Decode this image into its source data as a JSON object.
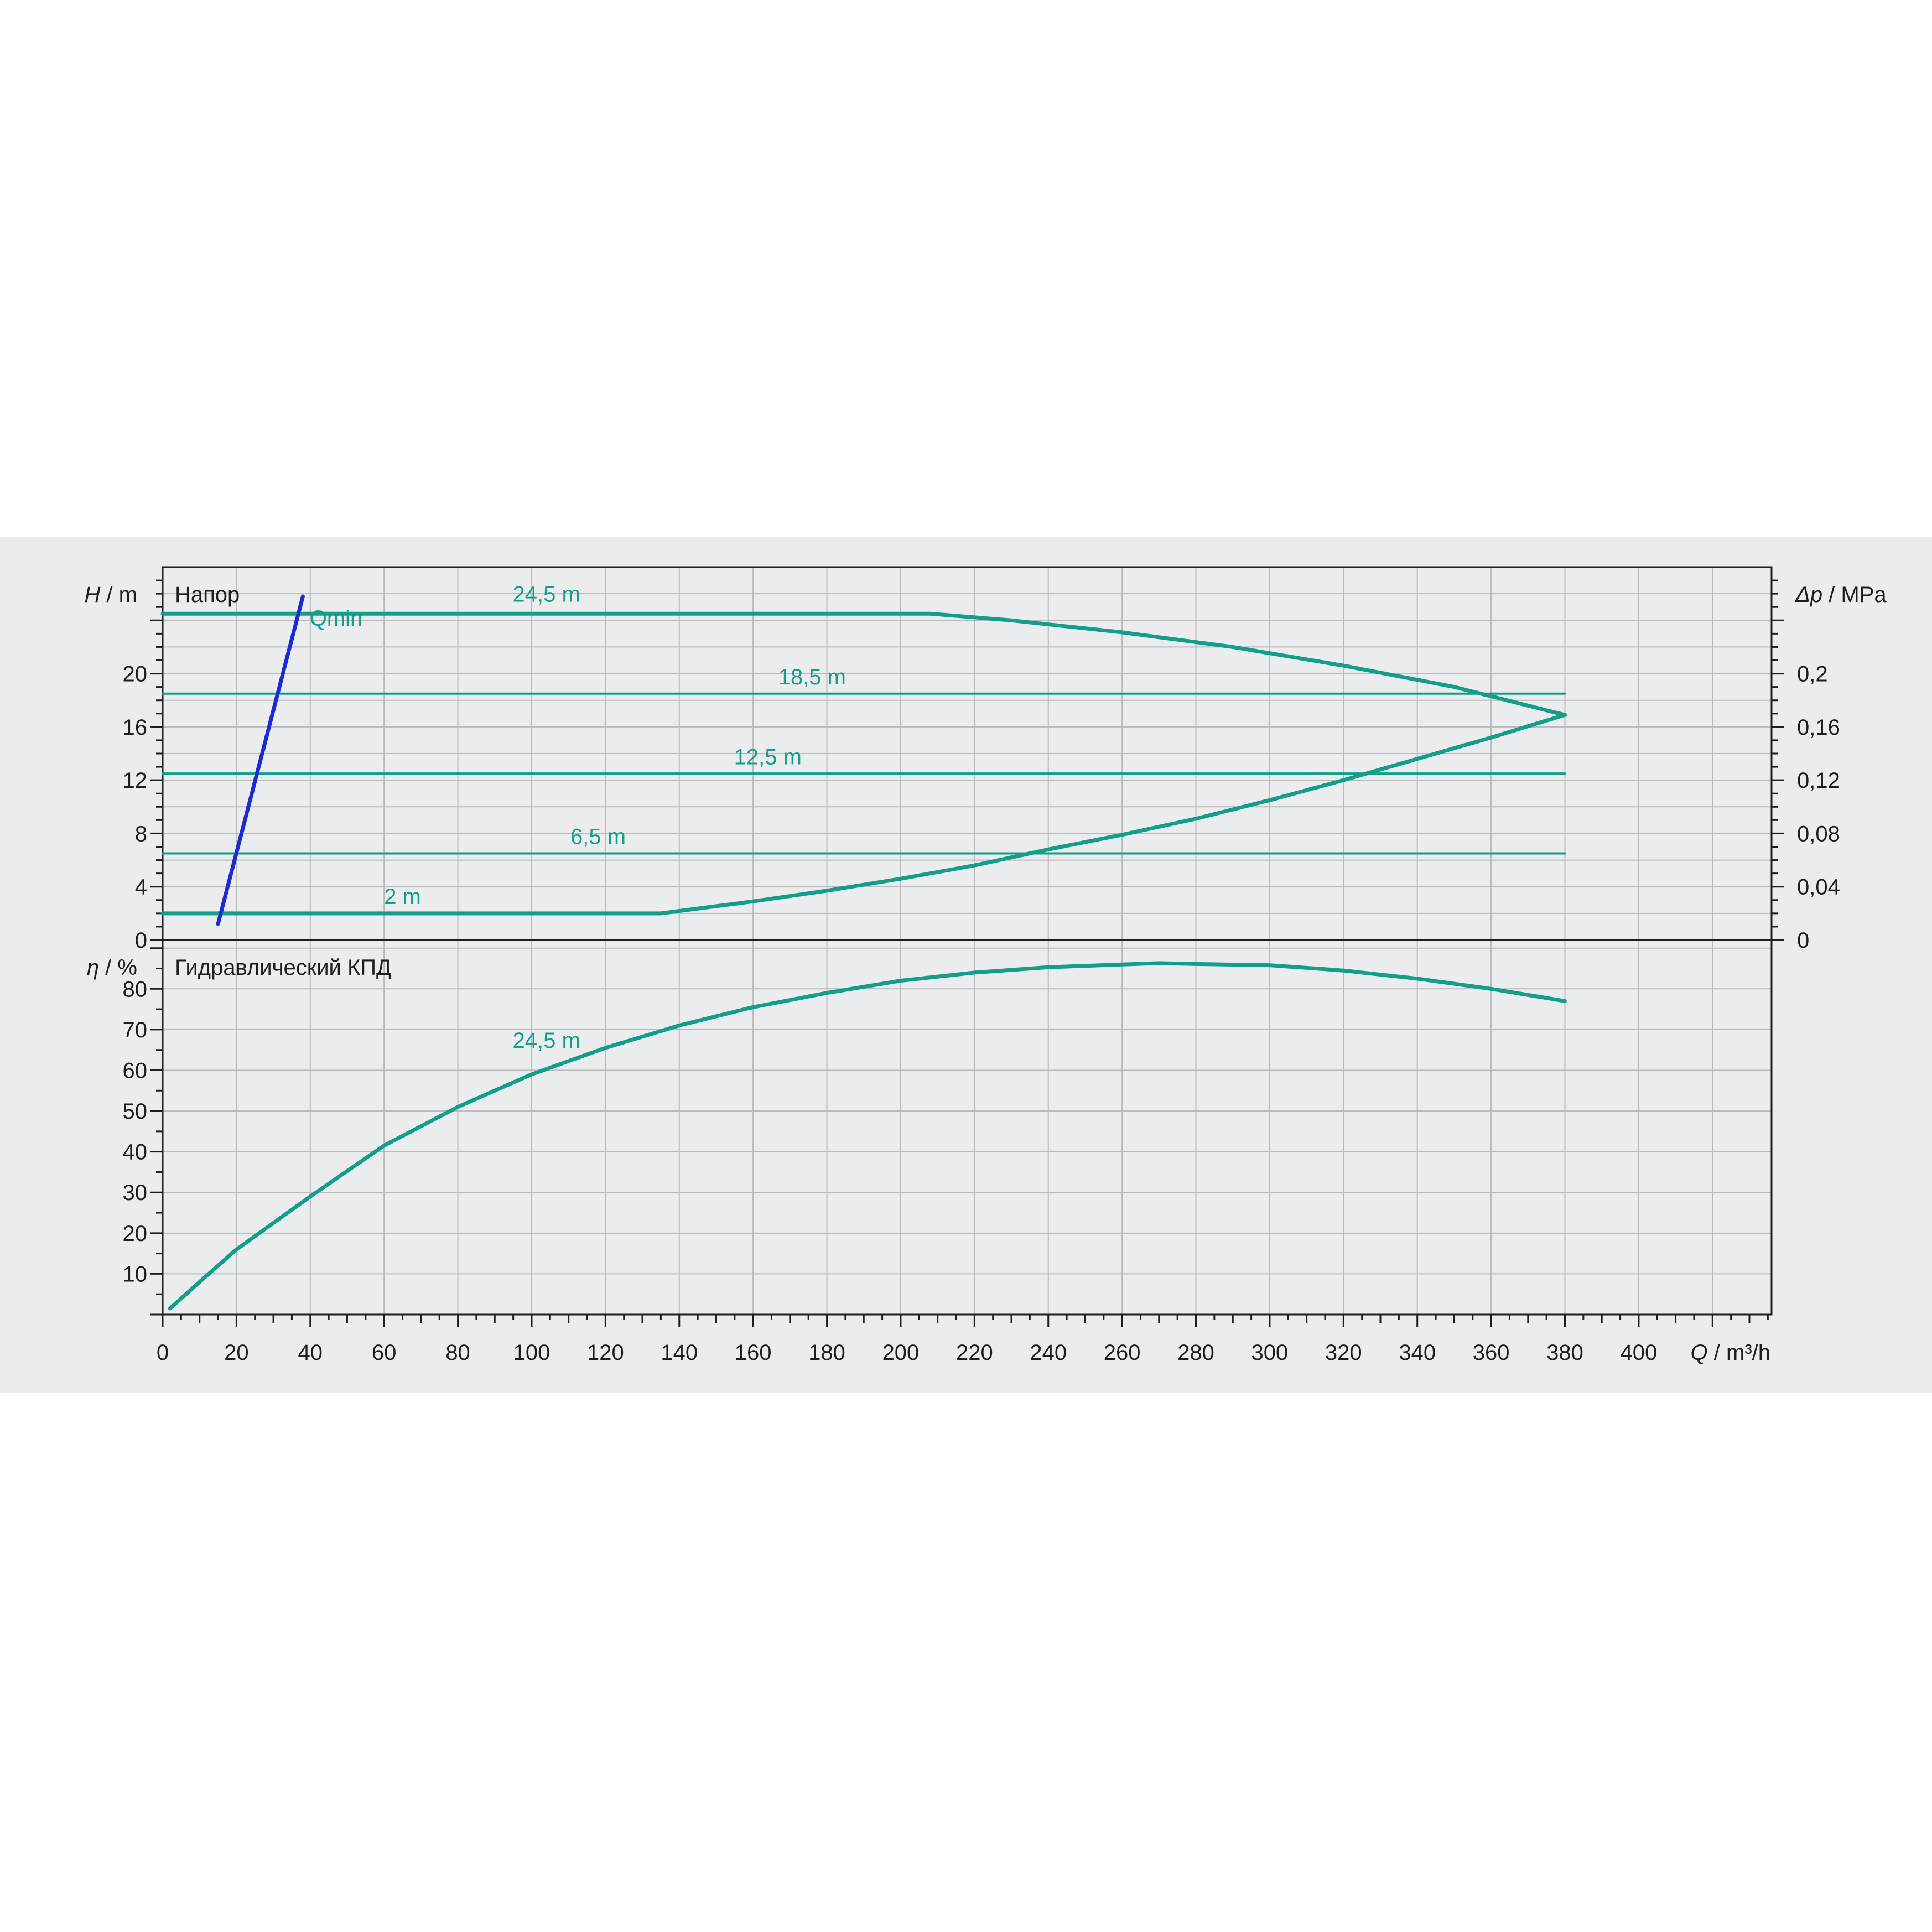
{
  "colors": {
    "curve": "#139e8a",
    "qmin": "#1a2ad4",
    "grid": "#b9b9b9",
    "frame": "#1e1e1e",
    "panel": "#ebecee"
  },
  "chart_data": [
    {
      "type": "line",
      "panel": "head",
      "title": "Напор",
      "ylabel": {
        "symbol": "H",
        "unit": " / m"
      },
      "y2label": {
        "symbol": "Δp",
        "unit": " / MPa"
      },
      "ylim": [
        0,
        28
      ],
      "y2lim": [
        0,
        0.28
      ],
      "yticks": [
        "0",
        "4",
        "8",
        "12",
        "16",
        "20"
      ],
      "y2ticks": [
        "0",
        "0,04",
        "0,08",
        "0,12",
        "0,16",
        "0,2"
      ],
      "grid": true,
      "series": [
        {
          "name": "24,5 m",
          "points": [
            [
              0,
              24.5
            ],
            [
              208,
              24.5
            ],
            [
              230,
              24.0
            ],
            [
              260,
              23.1
            ],
            [
              290,
              22.0
            ],
            [
              320,
              20.6
            ],
            [
              350,
              19.0
            ],
            [
              380,
              16.9
            ]
          ]
        },
        {
          "name": "18,5 m",
          "points": [
            [
              0,
              18.5
            ],
            [
              380,
              18.5
            ]
          ]
        },
        {
          "name": "12,5 m",
          "points": [
            [
              0,
              12.5
            ],
            [
              380,
              12.5
            ]
          ]
        },
        {
          "name": "6,5 m",
          "points": [
            [
              0,
              6.5
            ],
            [
              380,
              6.5
            ]
          ]
        },
        {
          "name": "2 m",
          "points": [
            [
              0,
              2
            ],
            [
              135,
              2
            ],
            [
              160,
              2.9
            ],
            [
              180,
              3.7
            ],
            [
              200,
              4.6
            ],
            [
              220,
              5.6
            ],
            [
              240,
              6.8
            ],
            [
              260,
              7.9
            ],
            [
              280,
              9.1
            ],
            [
              300,
              10.5
            ],
            [
              320,
              12.0
            ],
            [
              340,
              13.6
            ],
            [
              360,
              15.2
            ],
            [
              380,
              16.9
            ]
          ]
        },
        {
          "name": "Qmin",
          "points": [
            [
              15,
              1.2
            ],
            [
              38,
              25.8
            ]
          ]
        }
      ],
      "labels": [
        {
          "text": "24,5 m",
          "x": 104,
          "y": 25.4
        },
        {
          "text": "18,5 m",
          "x": 176,
          "y": 19.2
        },
        {
          "text": "12,5 m",
          "x": 164,
          "y": 13.2
        },
        {
          "text": "6,5 m",
          "x": 118,
          "y": 7.2
        },
        {
          "text": "2 m",
          "x": 65,
          "y": 2.7
        },
        {
          "text": "Qmin",
          "x": 47,
          "y": 23.6
        }
      ]
    },
    {
      "type": "line",
      "panel": "efficiency",
      "title": "Гидравлический КПД",
      "ylabel": {
        "symbol": "η",
        "unit": " / %"
      },
      "ylim": [
        0,
        92
      ],
      "yticks": [
        "0",
        "10",
        "20",
        "30",
        "40",
        "50",
        "60",
        "70",
        "80"
      ],
      "xlabel": {
        "symbol": "Q",
        "unit": " / m³/h"
      },
      "xlim": [
        0,
        436
      ],
      "xticks": [
        "0",
        "20",
        "40",
        "60",
        "80",
        "100",
        "120",
        "140",
        "160",
        "180",
        "200",
        "220",
        "240",
        "260",
        "280",
        "300",
        "320",
        "340",
        "360",
        "380",
        "400"
      ],
      "grid": true,
      "series": [
        {
          "name": "24,5 m",
          "points": [
            [
              2,
              1.5
            ],
            [
              10,
              8
            ],
            [
              20,
              16
            ],
            [
              40,
              29
            ],
            [
              60,
              41.5
            ],
            [
              80,
              51
            ],
            [
              100,
              59
            ],
            [
              120,
              65.5
            ],
            [
              140,
              71
            ],
            [
              160,
              75.5
            ],
            [
              180,
              79
            ],
            [
              200,
              82
            ],
            [
              220,
              84
            ],
            [
              240,
              85.3
            ],
            [
              260,
              86
            ],
            [
              270,
              86.3
            ],
            [
              280,
              86.1
            ],
            [
              300,
              85.8
            ],
            [
              320,
              84.5
            ],
            [
              340,
              82.5
            ],
            [
              360,
              80
            ],
            [
              380,
              77
            ]
          ]
        }
      ],
      "labels": [
        {
          "text": "24,5 m",
          "x": 104,
          "y": 65.5
        }
      ]
    }
  ]
}
